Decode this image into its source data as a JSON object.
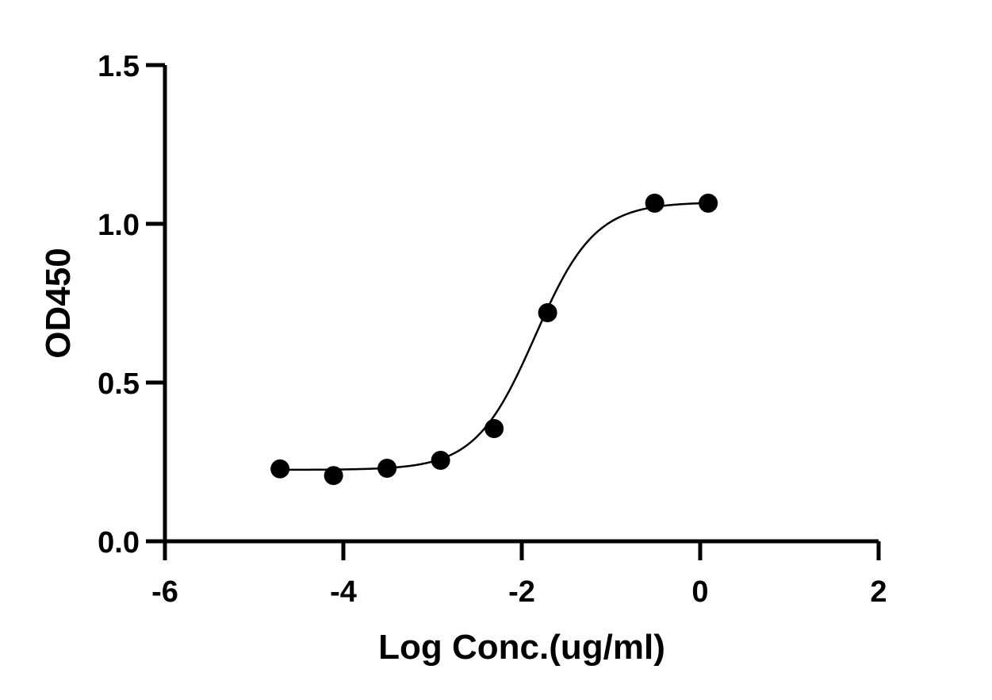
{
  "chart_data": {
    "type": "scatter",
    "xlabel": "Log Conc.(ug/ml)",
    "ylabel": "OD450",
    "xlim": [
      -6,
      2
    ],
    "ylim": [
      0,
      1.5
    ],
    "x_ticks": [
      "-6",
      "-4",
      "-2",
      "0",
      "2"
    ],
    "y_ticks": [
      "0.0",
      "0.5",
      "1.0",
      "1.5"
    ],
    "grid": false,
    "legend": "none",
    "series": [
      {
        "points": [
          {
            "x": -4.71,
            "y": 0.228
          },
          {
            "x": -4.11,
            "y": 0.207
          },
          {
            "x": -3.51,
            "y": 0.23
          },
          {
            "x": -2.91,
            "y": 0.255
          },
          {
            "x": -2.31,
            "y": 0.355
          },
          {
            "x": -1.71,
            "y": 0.72
          },
          {
            "x": -0.51,
            "y": 1.065
          },
          {
            "x": 0.09,
            "y": 1.065
          }
        ],
        "fit": {
          "model": "four-parameter logistic",
          "bottom": 0.225,
          "top": 1.068,
          "log_ec50": -1.85,
          "hill_slope": 1.3
        },
        "color": "#000000"
      }
    ]
  }
}
